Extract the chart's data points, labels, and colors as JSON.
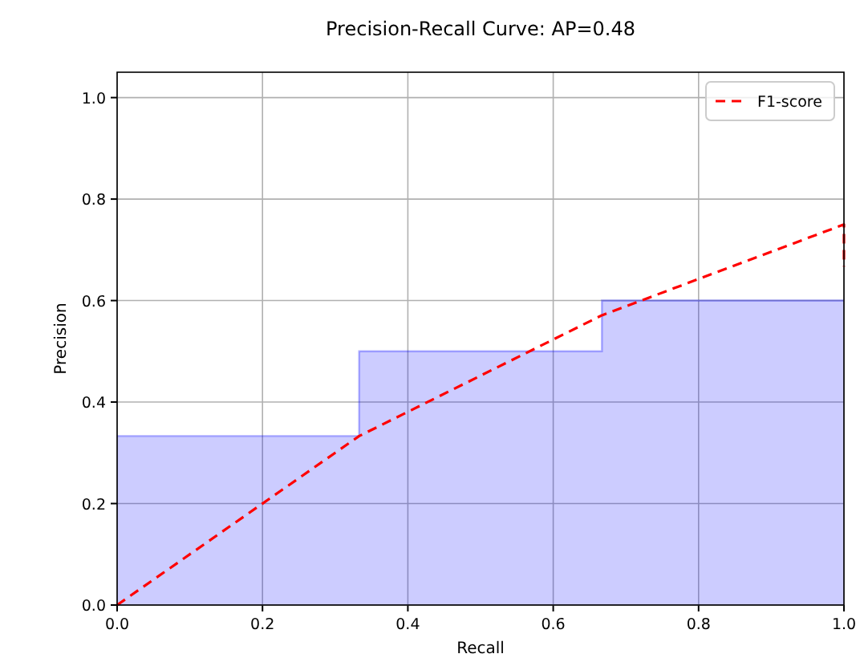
{
  "chart_data": {
    "type": "line",
    "title": "Precision-Recall Curve: AP=0.48",
    "xlabel": "Recall",
    "ylabel": "Precision",
    "xlim": [
      0,
      1
    ],
    "ylim": [
      0,
      1.05
    ],
    "xticks": [
      {
        "value": 0,
        "label": "0.0"
      },
      0.2,
      0.4,
      0.6,
      0.8,
      {
        "value": 1,
        "label": "1.0"
      }
    ],
    "yticks": [
      {
        "value": 0,
        "label": "0.0"
      },
      0.2,
      0.4,
      0.6,
      0.8,
      {
        "value": 1,
        "label": "1.0"
      }
    ],
    "grid": true,
    "legend": "top right",
    "series": [
      {
        "type": "area",
        "color": "#0000ff",
        "x": [
          0,
          0.333,
          0.333,
          0.667,
          0.667,
          1
        ],
        "values": [
          0.333,
          0.333,
          0.5,
          0.5,
          0.6,
          0.6
        ]
      },
      {
        "name": "F1-score",
        "color": "#ff0000",
        "line_style": "dashed",
        "marker": "none",
        "x": [
          0,
          0.333,
          0.667,
          1,
          1
        ],
        "values": [
          0,
          0.333,
          0.571,
          0.75,
          0.667
        ]
      }
    ]
  }
}
